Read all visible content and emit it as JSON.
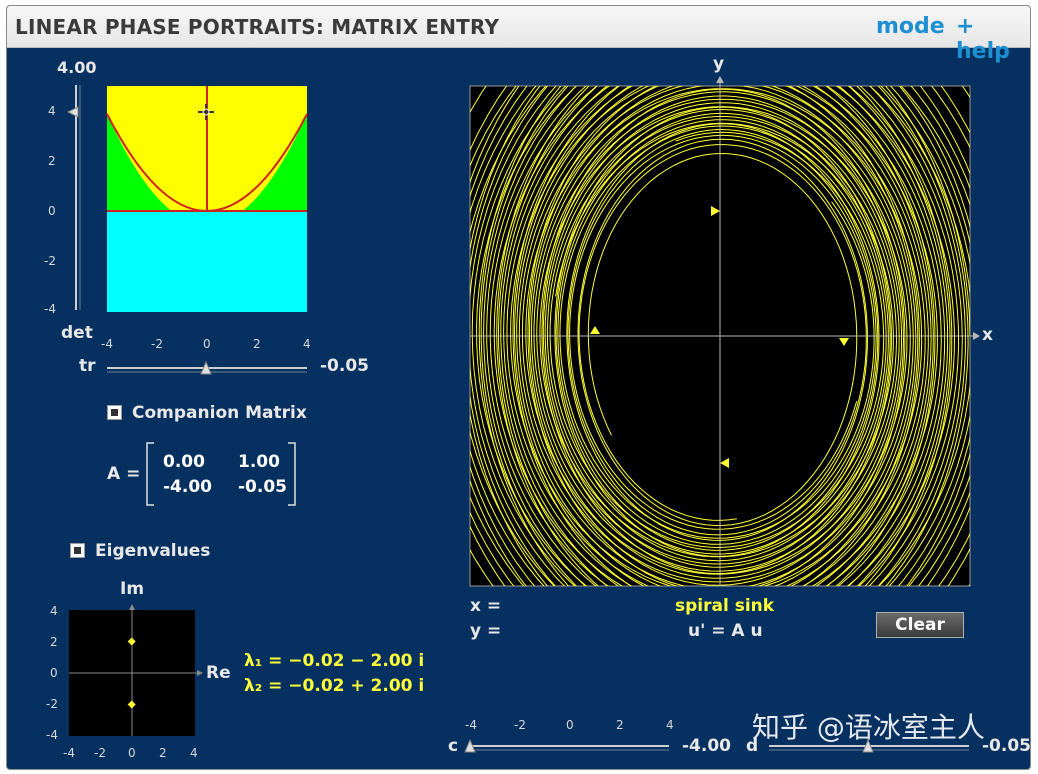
{
  "header": {
    "title": "LINEAR PHASE PORTRAITS: MATRIX ENTRY",
    "mode_label": "mode",
    "help_label": "+ help"
  },
  "trace_det": {
    "det_value": "4.00",
    "det_label": "det",
    "tr_label": "tr",
    "tr_value": "-0.05",
    "y_ticks": [
      "4",
      "2",
      "0",
      "-2",
      "-4"
    ],
    "x_ticks": [
      "-4",
      "-2",
      "0",
      "2",
      "4"
    ],
    "colors": {
      "above_parabola": "#ffff00",
      "below_parabola": "#00ff00",
      "negative_det": "#00ffff",
      "curve": "#cc2222"
    }
  },
  "companion": {
    "label": "Companion Matrix",
    "matrix_label": "A =",
    "a11": "0.00",
    "a12": "1.00",
    "a21": "-4.00",
    "a22": "-0.05"
  },
  "eigen": {
    "label": "Eigenvalues",
    "im_label": "Im",
    "re_label": "Re",
    "y_ticks": [
      "4",
      "2",
      "0",
      "-2",
      "-4"
    ],
    "x_ticks": [
      "-4",
      "-2",
      "0",
      "2",
      "4"
    ],
    "lambda1": "λ₁ = −0.02 − 2.00 i",
    "lambda2": "λ₂ = −0.02 + 2.00 i",
    "points": [
      {
        "re": -0.02,
        "im": 2.0
      },
      {
        "re": -0.02,
        "im": -2.0
      }
    ]
  },
  "phase": {
    "x_label": "x",
    "y_label": "y",
    "x_readout": "x =",
    "y_readout": "y =",
    "classification": "spiral sink",
    "equation": "u' = A u",
    "clear_label": "Clear",
    "trajectory_color": "#ffff33"
  },
  "sliders": {
    "ticks": [
      "-4",
      "-2",
      "0",
      "2",
      "4"
    ],
    "c_label": "c",
    "c_value": "-4.00",
    "d_label": "d",
    "d_value": "-0.05"
  },
  "watermark": "知乎 @语冰室主人"
}
